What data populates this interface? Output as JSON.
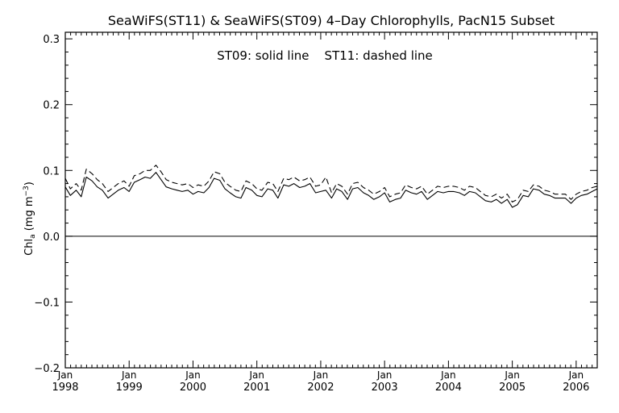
{
  "chart_data": {
    "type": "line",
    "title": "SeaWiFS(ST11) & SeaWiFS(ST09) 4–Day Chlorophylls, PacN15 Subset",
    "annotation": "ST09: solid line    ST11: dashed line",
    "xlabel": "",
    "ylabel": {
      "base": "Chl",
      "sub": "a",
      "open": " (mg m",
      "sup": "−3",
      "close": ")"
    },
    "xlim": [
      1998.0,
      2006.33
    ],
    "ylim": [
      -0.2,
      0.31
    ],
    "yticks": [
      -0.2,
      -0.1,
      0.0,
      0.1,
      0.2,
      0.3
    ],
    "ytick_labels": [
      "−0.2",
      "−0.1",
      "0.0",
      "0.1",
      "0.2",
      "0.3"
    ],
    "xticks": [
      1998,
      1999,
      2000,
      2001,
      2002,
      2003,
      2004,
      2005,
      2006
    ],
    "xtick_month": "Jan",
    "xtick_years": [
      "1998",
      "1999",
      "2000",
      "2001",
      "2002",
      "2003",
      "2004",
      "2005",
      "2006"
    ],
    "reference_line": 0.0,
    "grid": false,
    "series": [
      {
        "name": "ST09",
        "style": "solid",
        "x": [
          1998.0,
          1998.08,
          1998.17,
          1998.25,
          1998.33,
          1998.42,
          1998.5,
          1998.58,
          1998.67,
          1998.75,
          1998.83,
          1998.92,
          1999.0,
          1999.08,
          1999.17,
          1999.25,
          1999.33,
          1999.42,
          1999.5,
          1999.58,
          1999.67,
          1999.75,
          1999.83,
          1999.92,
          2000.0,
          2000.08,
          2000.17,
          2000.25,
          2000.33,
          2000.42,
          2000.5,
          2000.58,
          2000.67,
          2000.75,
          2000.83,
          2000.92,
          2001.0,
          2001.08,
          2001.17,
          2001.25,
          2001.33,
          2001.42,
          2001.5,
          2001.58,
          2001.67,
          2001.75,
          2001.83,
          2001.92,
          2002.0,
          2002.08,
          2002.17,
          2002.25,
          2002.33,
          2002.42,
          2002.5,
          2002.58,
          2002.67,
          2002.75,
          2002.83,
          2002.92,
          2003.0,
          2003.08,
          2003.17,
          2003.25,
          2003.33,
          2003.42,
          2003.5,
          2003.58,
          2003.67,
          2003.75,
          2003.83,
          2003.92,
          2004.0,
          2004.08,
          2004.17,
          2004.25,
          2004.33,
          2004.42,
          2004.5,
          2004.58,
          2004.67,
          2004.75,
          2004.83,
          2004.92,
          2005.0,
          2005.08,
          2005.17,
          2005.25,
          2005.33,
          2005.42,
          2005.5,
          2005.58,
          2005.67,
          2005.75,
          2005.83,
          2005.92,
          2006.0,
          2006.08,
          2006.17,
          2006.25,
          2006.33
        ],
        "y": [
          0.075,
          0.062,
          0.07,
          0.06,
          0.09,
          0.084,
          0.075,
          0.07,
          0.058,
          0.064,
          0.07,
          0.074,
          0.068,
          0.082,
          0.086,
          0.09,
          0.088,
          0.097,
          0.086,
          0.075,
          0.072,
          0.07,
          0.068,
          0.07,
          0.064,
          0.068,
          0.066,
          0.074,
          0.088,
          0.085,
          0.072,
          0.066,
          0.06,
          0.058,
          0.074,
          0.07,
          0.062,
          0.06,
          0.072,
          0.07,
          0.058,
          0.078,
          0.076,
          0.08,
          0.074,
          0.076,
          0.08,
          0.066,
          0.068,
          0.07,
          0.058,
          0.072,
          0.068,
          0.056,
          0.072,
          0.074,
          0.066,
          0.062,
          0.056,
          0.06,
          0.066,
          0.052,
          0.056,
          0.058,
          0.07,
          0.066,
          0.064,
          0.068,
          0.056,
          0.062,
          0.068,
          0.066,
          0.068,
          0.068,
          0.066,
          0.062,
          0.068,
          0.066,
          0.06,
          0.054,
          0.052,
          0.056,
          0.05,
          0.056,
          0.044,
          0.048,
          0.062,
          0.06,
          0.072,
          0.07,
          0.064,
          0.062,
          0.058,
          0.058,
          0.058,
          0.05,
          0.058,
          0.062,
          0.064,
          0.068,
          0.072
        ]
      },
      {
        "name": "ST11",
        "style": "dashed",
        "x": [
          1998.0,
          1998.08,
          1998.17,
          1998.25,
          1998.33,
          1998.42,
          1998.5,
          1998.58,
          1998.67,
          1998.75,
          1998.83,
          1998.92,
          1999.0,
          1999.08,
          1999.17,
          1999.25,
          1999.33,
          1999.42,
          1999.5,
          1999.58,
          1999.67,
          1999.75,
          1999.83,
          1999.92,
          2000.0,
          2000.08,
          2000.17,
          2000.25,
          2000.33,
          2000.42,
          2000.5,
          2000.58,
          2000.67,
          2000.75,
          2000.83,
          2000.92,
          2001.0,
          2001.08,
          2001.17,
          2001.25,
          2001.33,
          2001.42,
          2001.5,
          2001.58,
          2001.67,
          2001.75,
          2001.83,
          2001.92,
          2002.0,
          2002.08,
          2002.17,
          2002.25,
          2002.33,
          2002.42,
          2002.5,
          2002.58,
          2002.67,
          2002.75,
          2002.83,
          2002.92,
          2003.0,
          2003.08,
          2003.17,
          2003.25,
          2003.33,
          2003.42,
          2003.5,
          2003.58,
          2003.67,
          2003.75,
          2003.83,
          2003.92,
          2004.0,
          2004.08,
          2004.17,
          2004.25,
          2004.33,
          2004.42,
          2004.5,
          2004.58,
          2004.67,
          2004.75,
          2004.83,
          2004.92,
          2005.0,
          2005.08,
          2005.17,
          2005.25,
          2005.33,
          2005.42,
          2005.5,
          2005.58,
          2005.67,
          2005.75,
          2005.83,
          2005.92,
          2006.0,
          2006.08,
          2006.17,
          2006.25,
          2006.33
        ],
        "y": [
          0.088,
          0.072,
          0.08,
          0.07,
          0.102,
          0.095,
          0.086,
          0.08,
          0.068,
          0.074,
          0.08,
          0.084,
          0.076,
          0.092,
          0.095,
          0.1,
          0.1,
          0.108,
          0.098,
          0.086,
          0.082,
          0.08,
          0.078,
          0.08,
          0.074,
          0.078,
          0.076,
          0.084,
          0.098,
          0.095,
          0.082,
          0.076,
          0.07,
          0.068,
          0.084,
          0.08,
          0.072,
          0.07,
          0.082,
          0.08,
          0.068,
          0.088,
          0.086,
          0.09,
          0.084,
          0.086,
          0.09,
          0.076,
          0.078,
          0.09,
          0.066,
          0.08,
          0.076,
          0.064,
          0.08,
          0.082,
          0.074,
          0.07,
          0.064,
          0.068,
          0.074,
          0.06,
          0.064,
          0.066,
          0.078,
          0.074,
          0.072,
          0.076,
          0.064,
          0.07,
          0.076,
          0.074,
          0.076,
          0.076,
          0.074,
          0.07,
          0.076,
          0.074,
          0.068,
          0.062,
          0.06,
          0.064,
          0.058,
          0.064,
          0.052,
          0.056,
          0.07,
          0.068,
          0.078,
          0.076,
          0.07,
          0.068,
          0.064,
          0.064,
          0.064,
          0.056,
          0.064,
          0.068,
          0.07,
          0.074,
          0.076
        ]
      }
    ]
  }
}
